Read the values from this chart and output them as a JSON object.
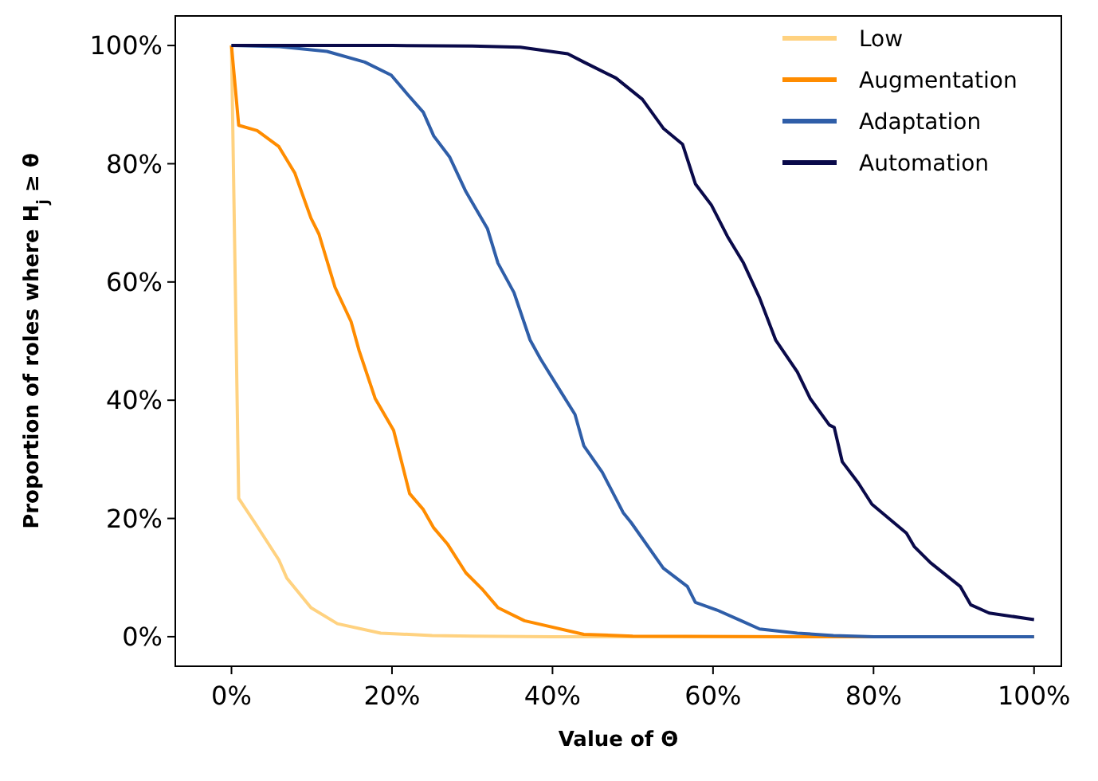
{
  "chart_data": {
    "type": "line",
    "xlabel": "Value of Θ",
    "ylabel": "Proportion of roles where H$_{j}$ ≥ θ",
    "xlim": [
      -7,
      103.4
    ],
    "ylim": [
      -5,
      105
    ],
    "xticks": [
      {
        "value": 0,
        "label": "0%"
      },
      {
        "value": 20,
        "label": "20%"
      },
      {
        "value": 40,
        "label": "40%"
      },
      {
        "value": 60,
        "label": "60%"
      },
      {
        "value": 80,
        "label": "80%"
      },
      {
        "value": 100,
        "label": "100%"
      }
    ],
    "yticks": [
      {
        "value": 0,
        "label": "0%"
      },
      {
        "value": 20,
        "label": "20%"
      },
      {
        "value": 40,
        "label": "40%"
      },
      {
        "value": 60,
        "label": "60%"
      },
      {
        "value": 80,
        "label": "80%"
      },
      {
        "value": 100,
        "label": "100%"
      }
    ],
    "legend": "top right",
    "grid": false,
    "marker": "none",
    "line_style": "solid",
    "series": [
      {
        "name": "Low",
        "color": "#ffd280",
        "x": [
          0,
          0.9,
          2.9,
          5.9,
          6.9,
          9.9,
          13.2,
          18.6,
          25,
          30,
          40,
          100
        ],
        "values": [
          100,
          23.4,
          19.3,
          13,
          9.9,
          4.9,
          2.2,
          0.6,
          0.2,
          0.1,
          0,
          0
        ]
      },
      {
        "name": "Augmentation",
        "color": "#ff8c00",
        "x": [
          0,
          0.9,
          3.2,
          5.9,
          7.9,
          9.9,
          10.9,
          12.9,
          14.9,
          15.9,
          17.9,
          20.2,
          22.2,
          23.9,
          25.2,
          26.9,
          29.2,
          31.2,
          32.9,
          33.2,
          36.5,
          43.9,
          50,
          70,
          100
        ],
        "values": [
          100,
          86.5,
          85.6,
          82.9,
          78.4,
          70.8,
          68.1,
          59.1,
          53.3,
          48.4,
          40.3,
          34.9,
          24.2,
          21.5,
          18.4,
          15.7,
          10.8,
          8.1,
          5.4,
          4.9,
          2.7,
          0.4,
          0.1,
          0,
          0
        ]
      },
      {
        "name": "Adaptation",
        "color": "#2f5ea8",
        "x": [
          0,
          6,
          11.9,
          16.6,
          19.9,
          21.9,
          23.9,
          25.2,
          27.2,
          29.2,
          31.9,
          33.2,
          35.2,
          37.2,
          38.5,
          40.5,
          42.8,
          43.9,
          46.2,
          48.8,
          49.8,
          53.8,
          56.8,
          57.8,
          60.5,
          63.5,
          65.8,
          70.5,
          75,
          80,
          100
        ],
        "values": [
          100,
          99.8,
          99,
          97.2,
          95,
          91.8,
          88.7,
          84.7,
          81.1,
          75.3,
          69,
          63.2,
          58.2,
          50.2,
          47,
          42.6,
          37.6,
          32.3,
          27.8,
          21,
          19.3,
          11.6,
          8.5,
          5.8,
          4.5,
          2.7,
          1.3,
          0.6,
          0.2,
          0,
          0
        ]
      },
      {
        "name": "Automation",
        "color": "#0a0a4a",
        "x": [
          0,
          20,
          30,
          36,
          41.9,
          43.9,
          47.9,
          51.2,
          53.8,
          56.2,
          57.8,
          59.8,
          61.8,
          63.8,
          65.8,
          67.8,
          70.5,
          72.1,
          74.5,
          75.1,
          76.1,
          78.1,
          79.8,
          84.1,
          85.1,
          87.1,
          90.8,
          92.1,
          94.4,
          100
        ],
        "values": [
          100,
          100,
          99.9,
          99.7,
          98.6,
          97.2,
          94.5,
          90.9,
          86,
          83.3,
          76.6,
          73,
          67.7,
          63.2,
          57.3,
          50.2,
          44.8,
          40.3,
          35.8,
          35.4,
          29.6,
          26,
          22.4,
          17.5,
          15.2,
          12.5,
          8.5,
          5.4,
          4,
          2.9
        ]
      }
    ]
  }
}
